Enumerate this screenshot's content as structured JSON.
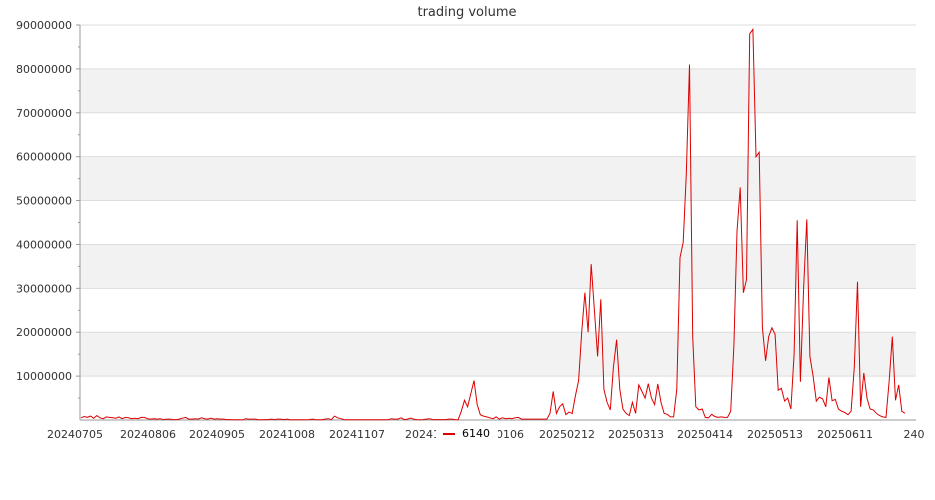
{
  "chart_data": {
    "type": "line",
    "title": "trading volume",
    "xlabel": "",
    "ylabel": "",
    "ylim": [
      0,
      90000000
    ],
    "yticks": [
      10000000,
      20000000,
      30000000,
      40000000,
      50000000,
      60000000,
      70000000,
      80000000,
      90000000
    ],
    "ytick_labels": [
      "10000000",
      "20000000",
      "30000000",
      "40000000",
      "50000000",
      "60000000",
      "70000000",
      "80000000",
      "90000000"
    ],
    "xtick_labels": [
      "20240705",
      "20240806",
      "20240905",
      "20241008",
      "20241107",
      "202412",
      "0106",
      "20250212",
      "20250313",
      "20250414",
      "20250513",
      "20250611",
      "240"
    ],
    "grid": "horizontal bands",
    "legend_position": "bottom-center",
    "colors": {
      "line": "#dd0000",
      "band": "#f2f2f2",
      "axis": "#999999",
      "grid": "#dddddd"
    },
    "series": [
      {
        "name": "6140",
        "values": [
          500000,
          800000,
          600000,
          900000,
          400000,
          1000000,
          500000,
          300000,
          700000,
          600000,
          500000,
          400000,
          700000,
          300000,
          600000,
          500000,
          300000,
          400000,
          300000,
          600000,
          600000,
          300000,
          200000,
          300000,
          200000,
          300000,
          100000,
          200000,
          200000,
          100000,
          100000,
          200000,
          400000,
          600000,
          200000,
          200000,
          300000,
          200000,
          500000,
          300000,
          200000,
          400000,
          200000,
          300000,
          200000,
          200000,
          100000,
          100000,
          50000,
          50000,
          50000,
          50000,
          300000,
          200000,
          200000,
          200000,
          50000,
          50000,
          100000,
          100000,
          200000,
          100000,
          200000,
          200000,
          100000,
          200000,
          50000,
          50000,
          50000,
          50000,
          50000,
          50000,
          100000,
          200000,
          100000,
          50000,
          50000,
          200000,
          300000,
          100000,
          900000,
          500000,
          300000,
          100000,
          50000,
          50000,
          50000,
          50000,
          50000,
          50000,
          50000,
          50000,
          50000,
          50000,
          50000,
          50000,
          50000,
          100000,
          300000,
          200000,
          200000,
          500000,
          100000,
          200000,
          400000,
          200000,
          100000,
          50000,
          100000,
          200000,
          300000,
          100000,
          100000,
          100000,
          100000,
          100000,
          200000,
          200000,
          100000,
          50000,
          2000000,
          4500000,
          3000000,
          6000000,
          9000000,
          3500000,
          1200000,
          900000,
          700000,
          500000,
          300000,
          700000,
          200000,
          500000,
          300000,
          400000,
          300000,
          500000,
          600000,
          200000,
          200000,
          200000,
          200000,
          200000,
          200000,
          200000,
          200000,
          200000,
          1500000,
          6500000,
          1500000,
          3000000,
          3700000,
          1200000,
          1800000,
          1500000,
          5500000,
          9000000,
          20000000,
          29000000,
          20000000,
          35500000,
          25000000,
          14500000,
          27500000,
          7000000,
          4000000,
          2300000,
          12000000,
          18300000,
          7000000,
          2500000,
          1500000,
          1000000,
          4000000,
          1500000,
          8000000,
          6500000,
          5000000,
          8300000,
          5000000,
          3500000,
          8200000,
          4000000,
          1500000,
          1300000,
          700000,
          700000,
          7000000,
          37000000,
          40500000,
          56000000,
          81000000,
          19000000,
          3000000,
          2300000,
          2500000,
          600000,
          500000,
          1300000,
          800000,
          600000,
          700000,
          600000,
          600000,
          2000000,
          17000000,
          43000000,
          53000000,
          29000000,
          32000000,
          88000000,
          89000000,
          60000000,
          61000000,
          21000000,
          13500000,
          19000000,
          21000000,
          19500000,
          6800000,
          7200000,
          4300000,
          5000000,
          2500000,
          15000000,
          45500000,
          8700000,
          30000000,
          45700000,
          14500000,
          10000000,
          4300000,
          5200000,
          4800000,
          3000000,
          9700000,
          4400000,
          4700000,
          2500000,
          2000000,
          1700000,
          1200000,
          2000000,
          12000000,
          31500000,
          3000000,
          10700000,
          5000000,
          2500000,
          2300000,
          1500000,
          1000000,
          700000,
          600000,
          9000000,
          19000000,
          4500000,
          8000000,
          2000000,
          1500000
        ]
      }
    ]
  }
}
